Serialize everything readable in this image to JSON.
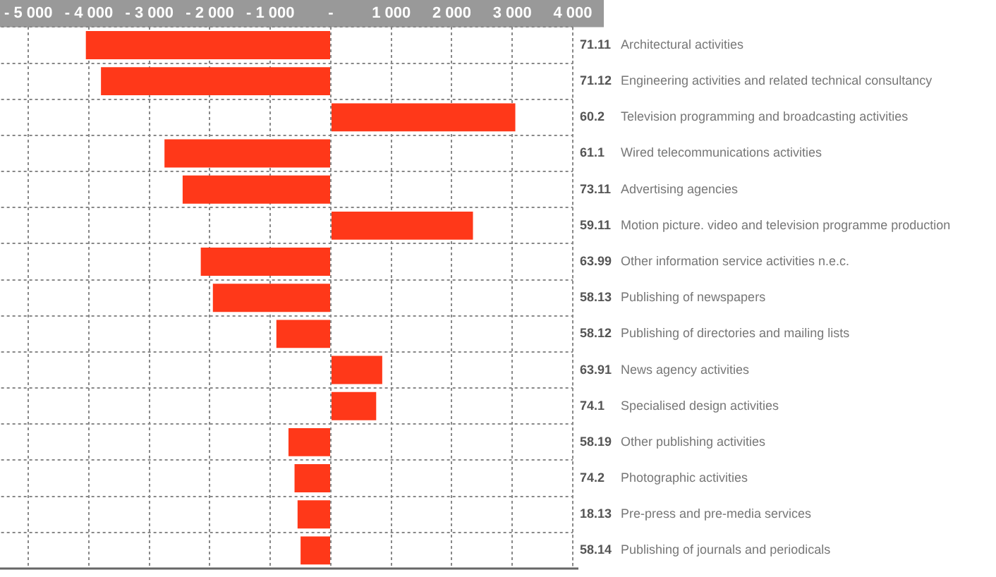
{
  "chart_data": {
    "type": "bar",
    "orientation": "horizontal",
    "categories": [
      "71.11 Architectural activities",
      "71.12 Engineering activities and related technical consultancy",
      "60.2 Television programming and broadcasting activities",
      "61.1 Wired telecommunications activities",
      "73.11 Advertising agencies",
      "59.11 Motion picture. video and television programme production",
      "63.99 Other information service activities n.e.c.",
      "58.13 Publishing of newspapers",
      "58.12 Publishing of directories and mailing lists",
      "63.91 News agency activities",
      "74.1 Specialised design activities",
      "58.19 Other publishing activities",
      "74.2 Photographic activities",
      "18.13 Pre-press and pre-media services",
      "58.14 Publishing of journals and periodicals"
    ],
    "values": [
      -4050,
      -3800,
      3050,
      -2750,
      -2450,
      2350,
      -2150,
      -1950,
      -900,
      850,
      750,
      -700,
      -600,
      -550,
      -500
    ],
    "color": "#ff3819",
    "xlim": [
      -5450,
      4000
    ],
    "xticks": [
      {
        "value": -5000,
        "label": "- 5 000"
      },
      {
        "value": -4000,
        "label": "- 4 000"
      },
      {
        "value": -3000,
        "label": "- 3 000"
      },
      {
        "value": -2000,
        "label": "- 2 000"
      },
      {
        "value": -1000,
        "label": "- 1 000"
      },
      {
        "value": 0,
        "label": "-"
      },
      {
        "value": 1000,
        "label": "1 000"
      },
      {
        "value": 2000,
        "label": "2 000"
      },
      {
        "value": 3000,
        "label": "3 000"
      },
      {
        "value": 4000,
        "label": "4 000"
      }
    ],
    "grid": true
  }
}
